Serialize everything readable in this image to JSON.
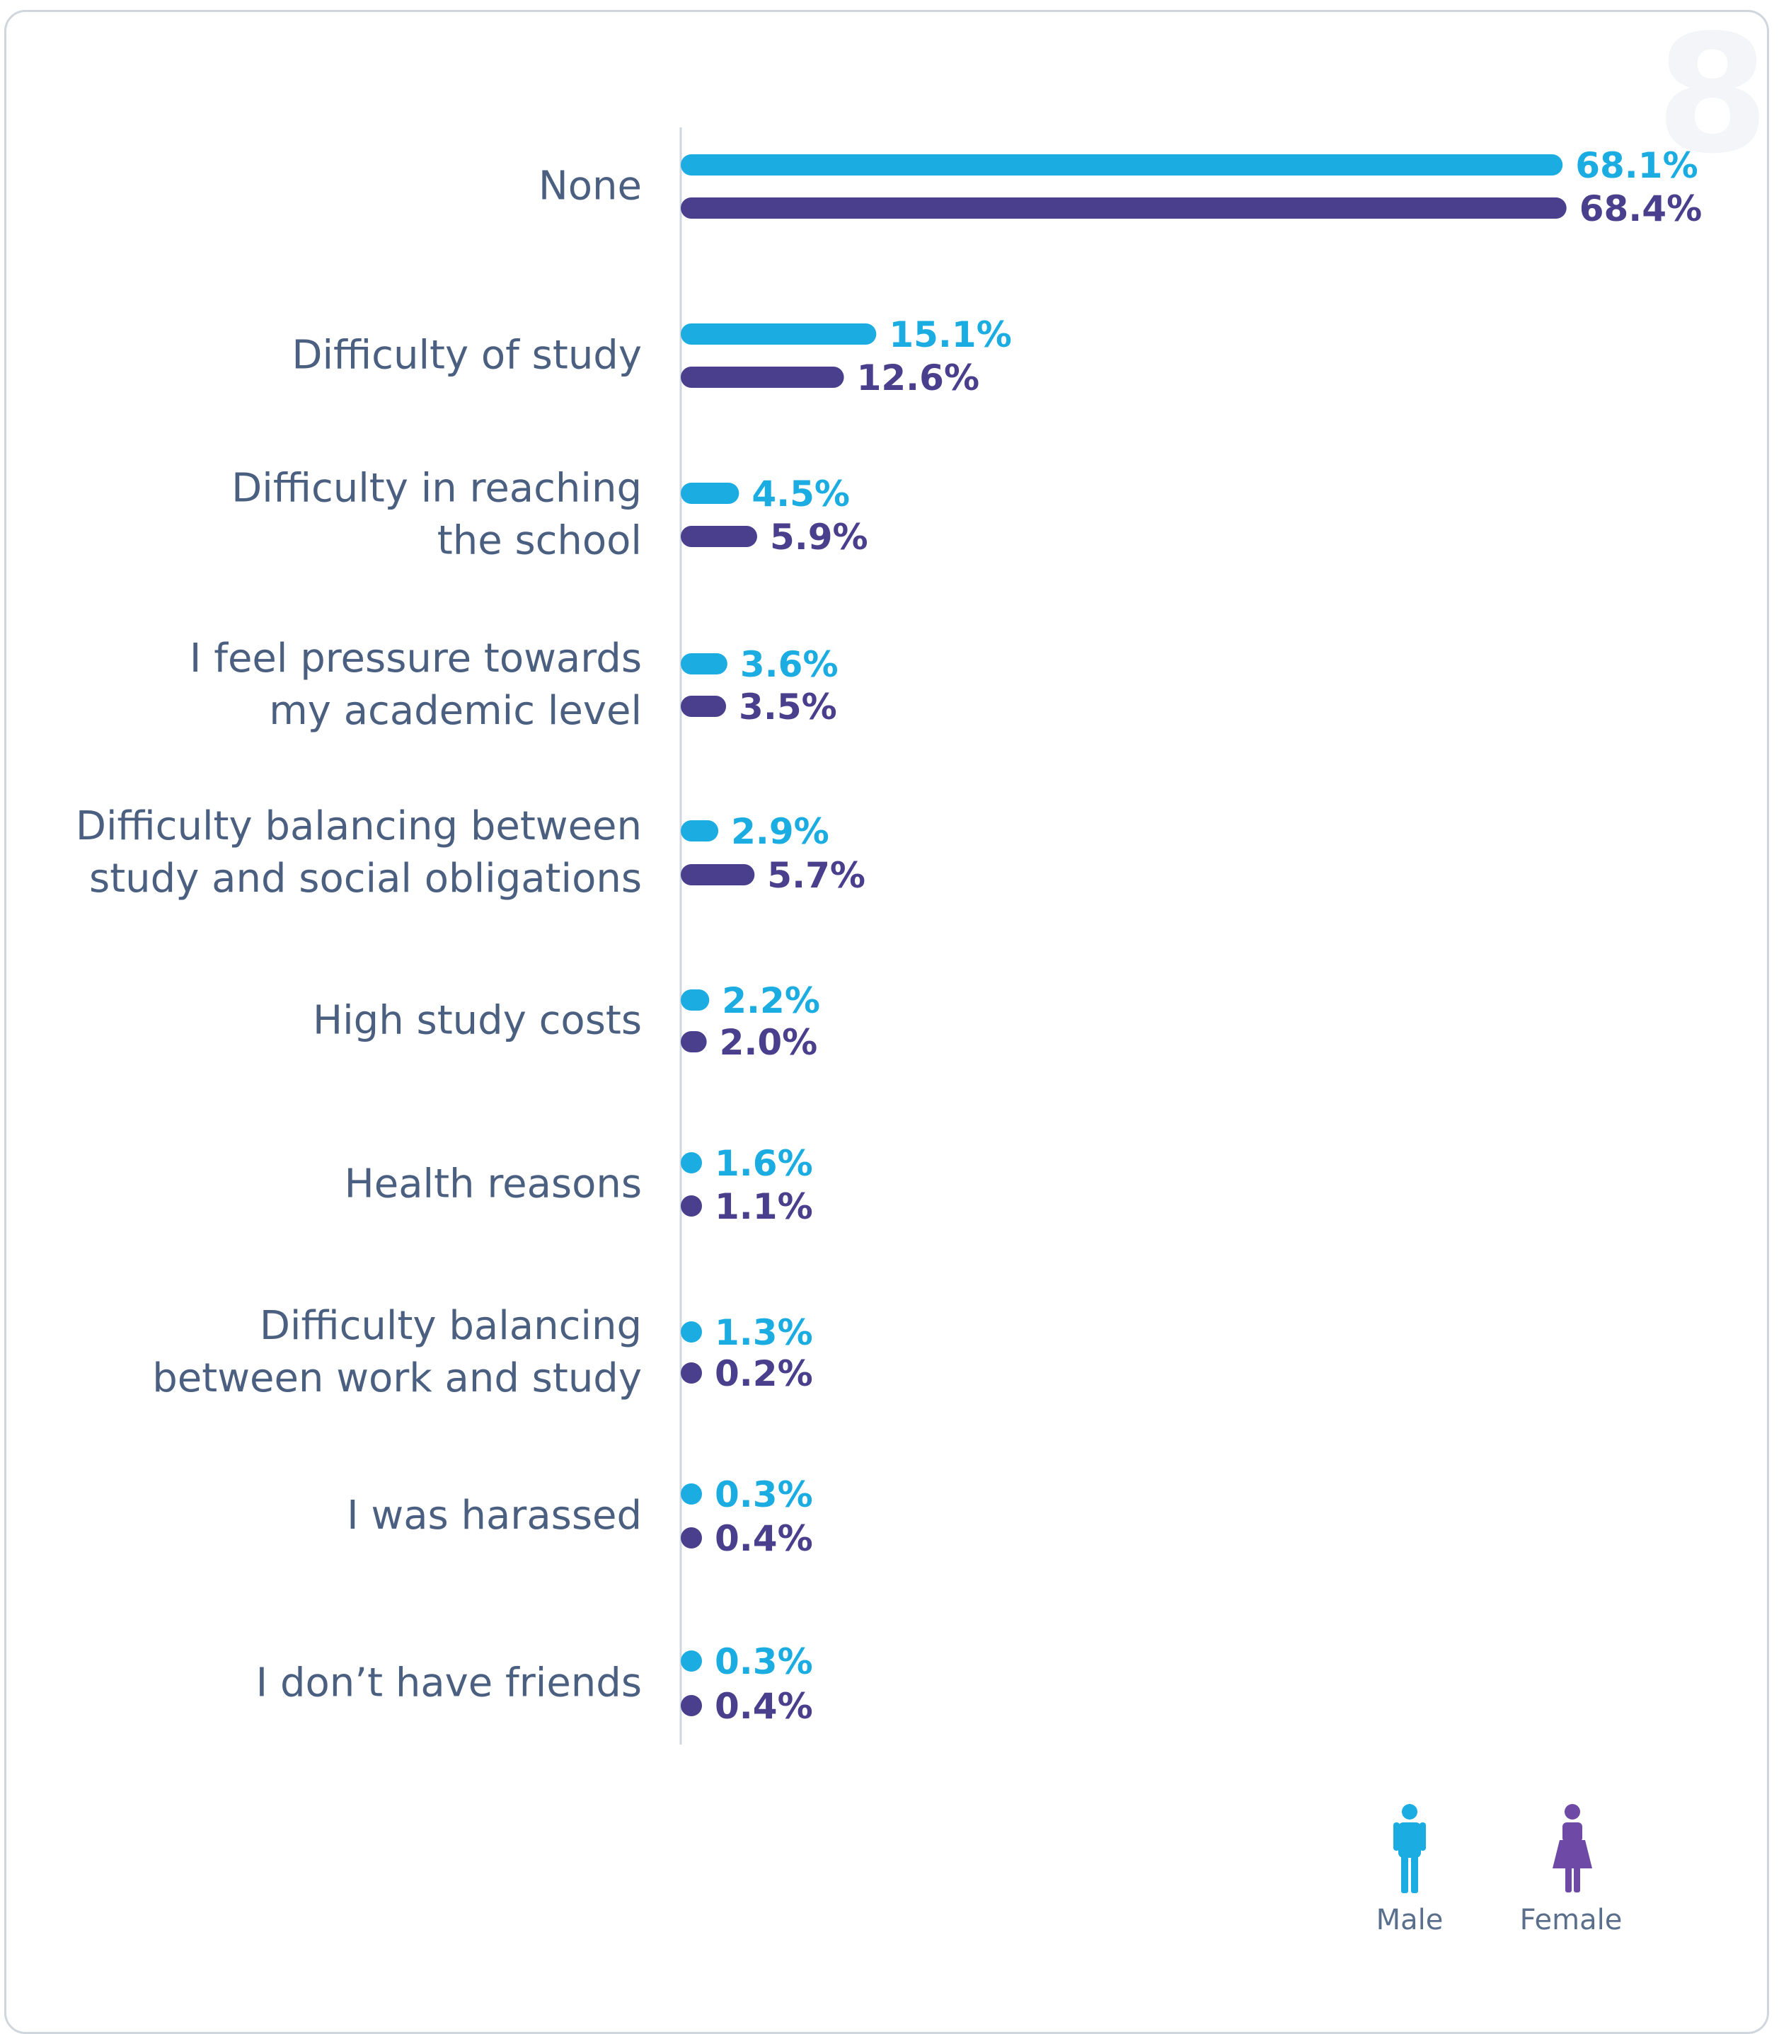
{
  "corner_badge": "8",
  "chart_data": {
    "type": "bar",
    "orientation": "horizontal",
    "categories": [
      [
        "None"
      ],
      [
        "Difficulty of study"
      ],
      [
        "Difficulty in reaching",
        "the school"
      ],
      [
        "I feel pressure towards",
        "my academic level"
      ],
      [
        "Difficulty balancing between",
        "study and social obligations"
      ],
      [
        "High study costs"
      ],
      [
        "Health reasons"
      ],
      [
        "Difficulty balancing",
        "between work and study"
      ],
      [
        "I was harassed"
      ],
      [
        "I don’t have friends"
      ]
    ],
    "series": [
      {
        "name": "Male",
        "color": "#1badE2",
        "values": [
          68.1,
          15.1,
          4.5,
          3.6,
          2.9,
          2.2,
          1.6,
          1.3,
          0.3,
          0.3
        ],
        "labels": [
          "68.1%",
          "15.1%",
          "4.5%",
          "3.6%",
          "2.9%",
          "2.2%",
          "1.6%",
          "1.3%",
          "0.3%",
          "0.3%"
        ]
      },
      {
        "name": "Female",
        "color": "#4a3f8c",
        "values": [
          68.4,
          12.6,
          5.9,
          3.5,
          5.7,
          2.0,
          1.1,
          0.2,
          0.4,
          0.4
        ],
        "labels": [
          "68.4%",
          "12.6%",
          "5.9%",
          "3.5%",
          "5.7%",
          "2.0%",
          "1.1%",
          "0.2%",
          "0.4%",
          "0.4%"
        ]
      }
    ],
    "xlim": [
      0,
      70
    ],
    "grid": false,
    "legend": {
      "position": "bottom-right",
      "entries": [
        "Male",
        "Female"
      ]
    }
  }
}
